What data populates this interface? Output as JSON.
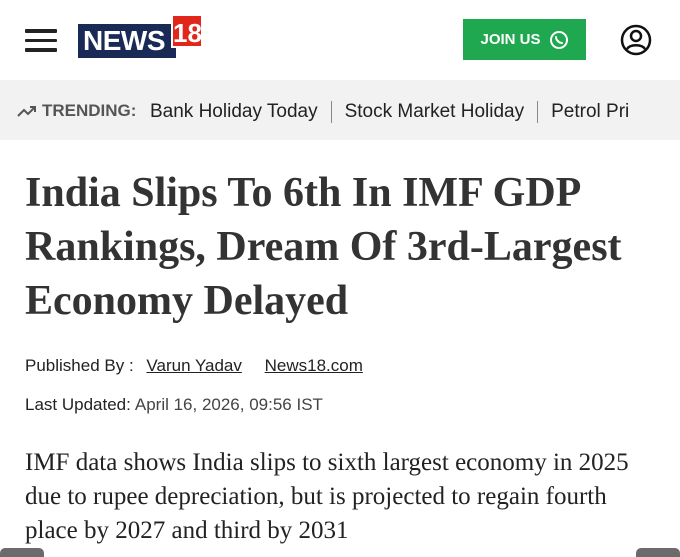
{
  "header": {
    "logo_text": "NEWS",
    "logo_number": "18",
    "join_button": "JOIN US"
  },
  "trending": {
    "label": "TRENDING:",
    "items": [
      "Bank Holiday Today",
      "Stock Market Holiday",
      "Petrol Pri"
    ]
  },
  "article": {
    "headline": "India Slips To 6th In IMF GDP Rankings, Dream Of 3rd-Largest Economy Delayed",
    "published_label": "Published By :",
    "author": "Varun Yadav",
    "source": "News18.com",
    "updated_label": "Last Updated:",
    "updated_date": "April 16, 2026, 09:56 IST",
    "summary": "IMF data shows India slips to sixth largest economy in 2025 due to rupee depreciation, but is projected to regain fourth place by 2027 and third by 2031"
  }
}
